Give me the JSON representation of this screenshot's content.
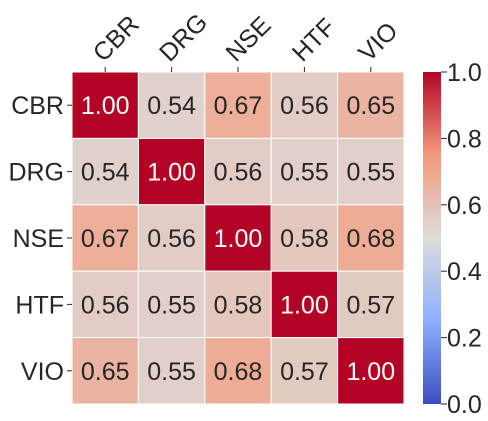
{
  "chart_data": {
    "type": "heatmap",
    "title": "",
    "xlabel": "",
    "ylabel": "",
    "x_categories": [
      "CBR",
      "DRG",
      "NSE",
      "HTF",
      "VIO"
    ],
    "y_categories": [
      "CBR",
      "DRG",
      "NSE",
      "HTF",
      "VIO"
    ],
    "values": [
      [
        1.0,
        0.54,
        0.67,
        0.56,
        0.65
      ],
      [
        0.54,
        1.0,
        0.56,
        0.55,
        0.55
      ],
      [
        0.67,
        0.56,
        1.0,
        0.58,
        0.68
      ],
      [
        0.56,
        0.55,
        0.58,
        1.0,
        0.57
      ],
      [
        0.65,
        0.55,
        0.68,
        0.57,
        1.0
      ]
    ],
    "value_format": "0.00",
    "colormap": "coolwarm",
    "vmin": 0.0,
    "vmax": 1.0,
    "colorbar_ticks": [
      "0.0",
      "0.2",
      "0.4",
      "0.6",
      "0.8",
      "1.0"
    ],
    "colorbar_position": "right",
    "x_labels_position": "top",
    "x_labels_rotation": "diagonal",
    "colors": {
      "cell_border": "#ffffff",
      "text_on_dark": "#ffffff",
      "text_on_light": "#262626"
    }
  }
}
